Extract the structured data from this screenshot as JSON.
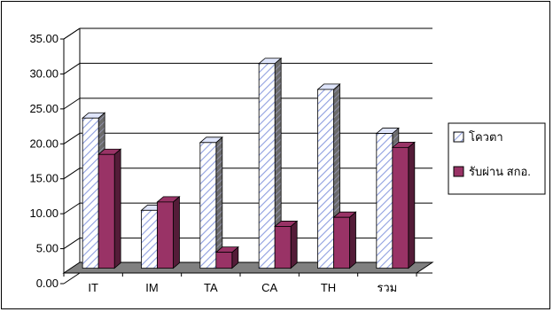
{
  "chart_data": {
    "type": "bar",
    "categories": [
      "IT",
      "IM",
      "TA",
      "CA",
      "TH",
      "รวม"
    ],
    "series": [
      {
        "name": "โควตา",
        "values": [
          23.0,
          9.8,
          19.5,
          30.8,
          27.1,
          20.8
        ],
        "color": "#cdd6f5",
        "pattern": "diagonal-hatch"
      },
      {
        "name": "รับผ่าน สกอ.",
        "values": [
          17.8,
          11.0,
          3.8,
          7.5,
          8.8,
          18.8
        ],
        "color": "#993366"
      }
    ],
    "y_tick_labels": [
      "0.00",
      "5.00",
      "10.00",
      "15.00",
      "20.00",
      "25.00",
      "30.00",
      "35.00"
    ],
    "ylim": [
      0,
      35
    ],
    "grid": true,
    "legend_position": "right",
    "style": "3d-clustered-column"
  }
}
